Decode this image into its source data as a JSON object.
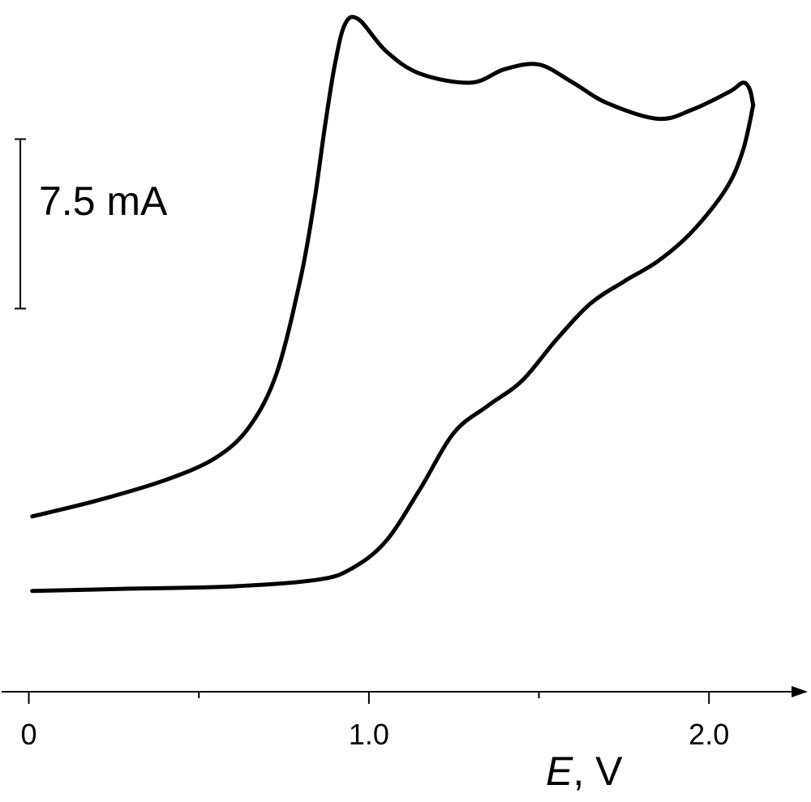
{
  "chart_data": {
    "type": "line",
    "title": "",
    "xlabel_var": "E",
    "xlabel_rest": ", V",
    "ylabel": "",
    "xlim": [
      -0.08,
      2.3
    ],
    "ylim": [
      -2.5,
      25.5
    ],
    "grid": false,
    "legend": "none",
    "x_ticks": [
      {
        "value": 0,
        "label": "0"
      },
      {
        "value": 0.5,
        "label": ""
      },
      {
        "value": 1.0,
        "label": "1.0"
      },
      {
        "value": 1.5,
        "label": ""
      },
      {
        "value": 2.0,
        "label": "2.0"
      }
    ],
    "scale_bar": {
      "label": "7.5 mA",
      "value": 7.5,
      "x": -0.025,
      "y_bottom": 12.2
    },
    "series": [
      {
        "branch": "anodic",
        "color": "#000000",
        "points": [
          [
            0.01,
            3.0
          ],
          [
            0.2,
            3.7
          ],
          [
            0.4,
            4.6
          ],
          [
            0.55,
            5.6
          ],
          [
            0.65,
            7.0
          ],
          [
            0.73,
            9.4
          ],
          [
            0.8,
            13.6
          ],
          [
            0.84,
            17.0
          ],
          [
            0.87,
            20.2
          ],
          [
            0.9,
            23.0
          ],
          [
            0.93,
            24.8
          ],
          [
            0.97,
            25.0
          ],
          [
            1.05,
            23.6
          ],
          [
            1.15,
            22.6
          ],
          [
            1.3,
            22.2
          ],
          [
            1.4,
            22.8
          ],
          [
            1.5,
            23.0
          ],
          [
            1.6,
            22.2
          ],
          [
            1.7,
            21.3
          ],
          [
            1.85,
            20.6
          ],
          [
            1.95,
            21.0
          ],
          [
            2.06,
            21.8
          ],
          [
            2.1,
            22.2
          ],
          [
            2.12,
            21.9
          ],
          [
            2.13,
            21.2
          ]
        ]
      },
      {
        "branch": "cathodic",
        "color": "#000000",
        "points": [
          [
            2.13,
            21.2
          ],
          [
            2.1,
            19.2
          ],
          [
            2.05,
            17.5
          ],
          [
            1.95,
            15.6
          ],
          [
            1.85,
            14.3
          ],
          [
            1.75,
            13.4
          ],
          [
            1.65,
            12.4
          ],
          [
            1.55,
            10.8
          ],
          [
            1.45,
            9.0
          ],
          [
            1.35,
            7.9
          ],
          [
            1.25,
            6.7
          ],
          [
            1.15,
            4.2
          ],
          [
            1.05,
            1.9
          ],
          [
            0.95,
            0.7
          ],
          [
            0.85,
            0.2
          ],
          [
            0.6,
            -0.1
          ],
          [
            0.3,
            -0.2
          ],
          [
            0.01,
            -0.3
          ]
        ]
      }
    ]
  }
}
